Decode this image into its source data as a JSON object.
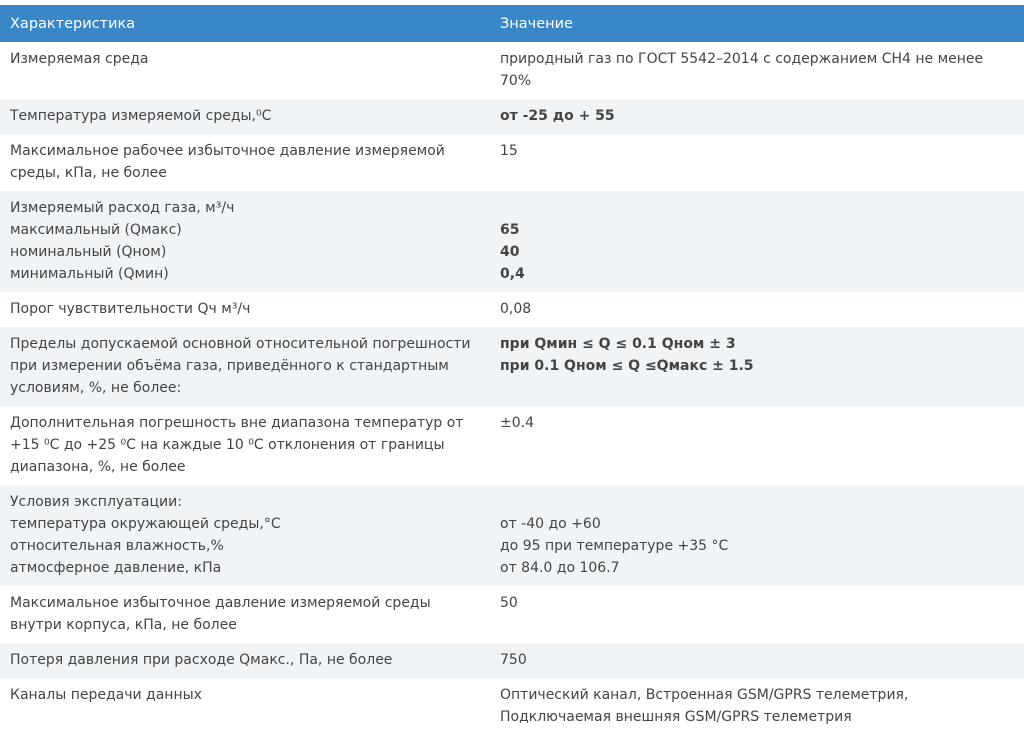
{
  "header": {
    "col_characteristic": "Характеристика",
    "col_value": "Значение"
  },
  "colors": {
    "header_bg": "#3a87c8",
    "stripe_bg": "#f0f4f7",
    "text": "#444444"
  },
  "rows": [
    {
      "key": [
        "Измеряемая среда"
      ],
      "value": [
        {
          "t": "природный газ по ГОСТ 5542–2014 с содержанием CH4 не менее"
        },
        {
          "t": "70%"
        }
      ]
    },
    {
      "key": [
        "Температура измеряемой среды,⁰С"
      ],
      "value": [
        {
          "t": "от -25 до + 55",
          "b": true
        }
      ]
    },
    {
      "key": [
        "Максимальное рабочее избыточное давление измеряемой",
        "среды, кПа, не более"
      ],
      "value": [
        {
          "t": "15"
        }
      ]
    },
    {
      "key": [
        "Измеряемый расход газа, м³/ч",
        "максимальный (Qмакс)",
        "номинальный (Qном)",
        "минимальный (Qмин)"
      ],
      "value": [
        {
          "t": ""
        },
        {
          "t": "65",
          "b": true
        },
        {
          "t": "40",
          "b": true
        },
        {
          "t": "0,4",
          "b": true
        }
      ]
    },
    {
      "key": [
        "Порог чувствительности Qч м³/ч"
      ],
      "value": [
        {
          "t": "0,08"
        }
      ]
    },
    {
      "key": [
        "Пределы допускаемой основной относительной погрешности",
        "при измерении объёма газа, приведённого к стандартным",
        "условиям, %, не более:"
      ],
      "value": [
        {
          "t": "при Qмин ≤ Q ≤ 0.1 Qном ± 3",
          "b": true
        },
        {
          "t": "при 0.1 Qном ≤ Q ≤Qмакс ± 1.5",
          "b": true
        }
      ]
    },
    {
      "key": [
        "Дополнительная погрешность вне диапазона температур от",
        "+15 ⁰С до +25 ⁰С на каждые 10 ⁰С отклонения от границы",
        "диапазона, %, не более"
      ],
      "value": [
        {
          "t": "±0.4"
        }
      ]
    },
    {
      "key": [
        "Условия эксплуатации:",
        "температура окружающей среды,°С",
        "относительная влажность,%",
        "атмосферное давление, кПа"
      ],
      "value": [
        {
          "t": ""
        },
        {
          "t": "от -40 до +60"
        },
        {
          "t": "до 95 при температуре +35 °С"
        },
        {
          "t": "от 84.0 до 106.7"
        }
      ]
    },
    {
      "key": [
        "Максимальное избыточное давление измеряемой среды",
        "внутри корпуса, кПа, не более"
      ],
      "value": [
        {
          "t": "50"
        }
      ]
    },
    {
      "key": [
        "Потеря давления при расходе Qмакс., Па, не более"
      ],
      "value": [
        {
          "t": "750"
        }
      ]
    },
    {
      "key": [
        "Каналы передачи данных"
      ],
      "value": [
        {
          "t": "Оптический канал, Встроенная GSM/GPRS телеметрия,"
        },
        {
          "t": "Подключаемая внешняя GSM/GPRS телеметрия"
        }
      ]
    }
  ]
}
